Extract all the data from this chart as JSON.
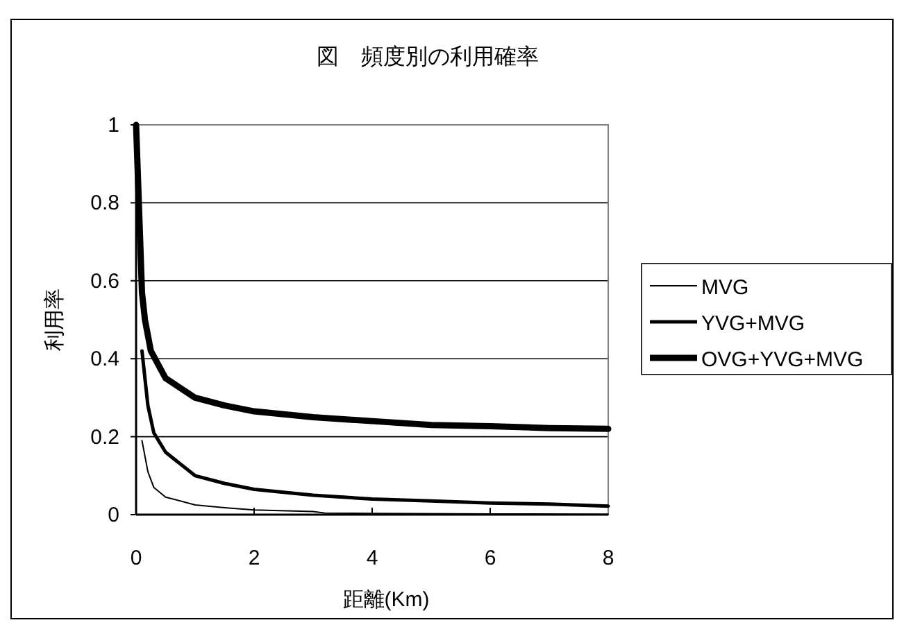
{
  "chart_data": {
    "type": "line",
    "title": "図　頻度別の利用確率",
    "xlabel": "距離(Km)",
    "ylabel": "利用率",
    "xlim": [
      0,
      8
    ],
    "xticks": [
      0,
      2,
      4,
      6,
      8
    ],
    "ylim": [
      0,
      1
    ],
    "yticks": [
      0,
      0.2,
      0.4,
      0.6,
      0.8,
      1
    ],
    "grid": "y",
    "legend": "right",
    "marker": "none",
    "line_style": "solid",
    "series": [
      {
        "name": "MVG",
        "color": "#000000",
        "x": [
          0.1,
          0.2,
          0.3,
          0.5,
          1,
          1.5,
          2,
          3,
          3.2,
          4,
          6,
          8
        ],
        "values": [
          0.19,
          0.11,
          0.07,
          0.045,
          0.025,
          0.018,
          0.012,
          0.008,
          0.004,
          0.003,
          0.002,
          0.001
        ]
      },
      {
        "name": "YVG+MVG",
        "color": "#000000",
        "x": [
          0.1,
          0.2,
          0.3,
          0.5,
          1,
          1.5,
          2,
          3,
          4,
          5,
          6,
          7,
          8
        ],
        "values": [
          0.42,
          0.28,
          0.21,
          0.16,
          0.1,
          0.08,
          0.065,
          0.05,
          0.04,
          0.035,
          0.03,
          0.027,
          0.022
        ]
      },
      {
        "name": "OVG+YVG+MVG",
        "color": "#000000",
        "x": [
          0,
          0.1,
          0.15,
          0.25,
          0.5,
          1,
          1.5,
          2,
          3,
          4,
          5,
          6,
          7,
          8
        ],
        "values": [
          1,
          0.57,
          0.5,
          0.42,
          0.35,
          0.3,
          0.28,
          0.265,
          0.25,
          0.24,
          0.23,
          0.227,
          0.222,
          0.22
        ]
      }
    ]
  }
}
